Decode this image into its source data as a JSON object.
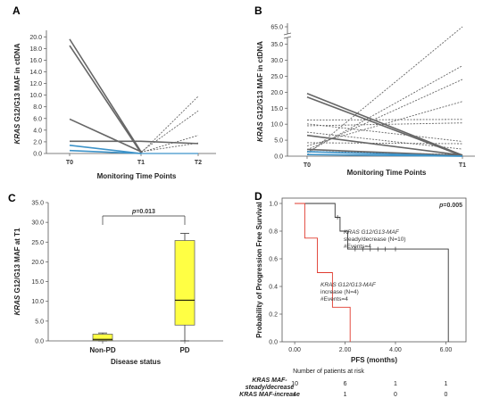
{
  "figure": {
    "panel_A": "A",
    "panel_B": "B",
    "panel_C": "C",
    "panel_D": "D"
  },
  "colors": {
    "gray": "#666666",
    "blue": "#3d93c9",
    "yellow": "#ffff44",
    "red": "#e03a2e",
    "black": "#000000"
  },
  "chart_data": [
    {
      "panel": "A",
      "type": "line",
      "ylabel": "KRAS G12/G13 MAF in ctDNA",
      "ylabel_italic": "KRAS",
      "ylabel_rest": " G12/G13 MAF in ctDNA",
      "xlabel": "Monitoring Time Points",
      "categories": [
        "T0",
        "T1",
        "T2"
      ],
      "yticks": [
        "0.0",
        "2.0",
        "4.0",
        "6.0",
        "8.0",
        "10.0",
        "12.0",
        "14.0",
        "16.0",
        "18.0",
        "20.0"
      ],
      "ylim": [
        0,
        20.5
      ],
      "grid": false,
      "series_solid_gray": [
        {
          "t0": 19.6,
          "t1": 0.3
        },
        {
          "t0": 18.5,
          "t1": 0.1
        },
        {
          "t0": 5.9,
          "t1": 0.3
        },
        {
          "t0": 2.1,
          "t1": 2.1
        }
      ],
      "series_blue": [
        {
          "t0": 1.4,
          "t1": 0.0
        },
        {
          "t0": 0.5,
          "t1": 0.0
        }
      ],
      "series_dotted_t1_t2": [
        {
          "t1": 0.1,
          "t2": 9.8
        },
        {
          "t1": 0.3,
          "t2": 7.3
        },
        {
          "t1": 0.2,
          "t2": 3.1
        },
        {
          "t1": 0.3,
          "t2": 1.8
        }
      ],
      "series_solid_t1_t2": [
        {
          "t1": 2.1,
          "t2": 1.7
        }
      ]
    },
    {
      "panel": "B",
      "type": "line",
      "ylabel": "KRAS G12/G13 MAF in ctDNA",
      "ylabel_italic": "KRAS",
      "ylabel_rest": " G12/G13 MAF in ctDNA",
      "xlabel": "Monitoring Time Points",
      "categories": [
        "T0",
        "T1"
      ],
      "yticks": [
        "0.0",
        "5.0",
        "10.0",
        "15.0",
        "20.0",
        "25.0",
        "30.0",
        "35.0"
      ],
      "ytick_break": "65.0",
      "ylim": [
        0,
        36
      ],
      "grid": false,
      "solid_gray": [
        {
          "t0": 19.6,
          "t1": 0.3
        },
        {
          "t0": 18.5,
          "t1": 0.1
        },
        {
          "t0": 6.5,
          "t1": 0.3
        },
        {
          "t0": 2.1,
          "t1": 0.2
        }
      ],
      "blue": [
        {
          "t0": 1.4,
          "t1": 0.0
        },
        {
          "t0": 0.5,
          "t1": 0.0
        }
      ],
      "dotted": [
        {
          "t0": 0.5,
          "t1": 65.0
        },
        {
          "t0": 1.2,
          "t1": 28.3
        },
        {
          "t0": 2.0,
          "t1": 24.0
        },
        {
          "t0": 3.2,
          "t1": 17.1
        },
        {
          "t0": 11.3,
          "t1": 11.5
        },
        {
          "t0": 9.5,
          "t1": 10.4
        },
        {
          "t0": 10.1,
          "t1": 4.6
        },
        {
          "t0": 4.2,
          "t1": 3.9
        },
        {
          "t0": 7.5,
          "t1": 2.2
        },
        {
          "t0": 1.5,
          "t1": 0.5
        }
      ]
    },
    {
      "panel": "C",
      "type": "box",
      "ylabel": "KRAS G12/G13 MAF at T1",
      "ylabel_italic": "KRAS",
      "ylabel_rest": " G12/G13 MAF at T1",
      "xlabel": "Disease status",
      "categories": [
        "Non-PD",
        "PD"
      ],
      "yticks": [
        "0.0",
        "5.0",
        "10.0",
        "15.0",
        "20.0",
        "25.0",
        "30.0",
        "35.0"
      ],
      "ylim": [
        0,
        35
      ],
      "pvalue_p": "p",
      "pvalue_rest": "=0.013",
      "boxes": [
        {
          "name": "Non-PD",
          "min": 0.0,
          "q1": 0.1,
          "median": 0.4,
          "q3": 1.7,
          "max": 2.0
        },
        {
          "name": "PD",
          "min": 0.0,
          "q1": 4.0,
          "median": 10.3,
          "q3": 25.4,
          "max": 27.2
        }
      ]
    },
    {
      "panel": "D",
      "type": "line",
      "ylabel": "Probability of Progression Free Survival",
      "xlabel": "PFS (months)",
      "xticks": [
        "0.00",
        "2.00",
        "4.00",
        "6.00"
      ],
      "yticks": [
        "0.0",
        "0.2",
        "0.4",
        "0.6",
        "0.8",
        "1.0"
      ],
      "xlim": [
        -0.5,
        6.8
      ],
      "ylim": [
        0,
        1.0
      ],
      "pvalue_p": "p",
      "pvalue_rest": "=0.005",
      "series": [
        {
          "name": "steady/decrease",
          "label_line1_italic": "KRAS G12/G13-MAF",
          "label_line2": "steady/decrease (N=10)",
          "label_line3": "#Events=4",
          "steps": [
            [
              0.0,
              1.0
            ],
            [
              1.6,
              1.0
            ],
            [
              1.6,
              0.9
            ],
            [
              1.8,
              0.9
            ],
            [
              1.8,
              0.8
            ],
            [
              2.1,
              0.8
            ],
            [
              2.1,
              0.67
            ],
            [
              6.1,
              0.67
            ],
            [
              6.1,
              0.0
            ]
          ],
          "censors": [
            [
              1.7,
              0.9
            ],
            [
              2.4,
              0.67
            ],
            [
              2.7,
              0.67
            ],
            [
              3.0,
              0.67
            ],
            [
              3.3,
              0.67
            ],
            [
              3.6,
              0.67
            ],
            [
              4.0,
              0.67
            ]
          ]
        },
        {
          "name": "increase",
          "label_line1_italic": "KRAS G12/G13-MAF",
          "label_line2": "increase (N=4)",
          "label_line3": "#Events=4",
          "steps": [
            [
              0.0,
              1.0
            ],
            [
              0.4,
              1.0
            ],
            [
              0.4,
              0.75
            ],
            [
              0.9,
              0.75
            ],
            [
              0.9,
              0.5
            ],
            [
              1.5,
              0.5
            ],
            [
              1.5,
              0.25
            ],
            [
              2.2,
              0.25
            ],
            [
              2.2,
              0.0
            ]
          ],
          "censors": []
        }
      ],
      "risk_table": {
        "title": "Number of patients at risk",
        "row1_label_line1": "KRAS MAF-",
        "row1_label_line2": "steady/decrease",
        "row1": [
          "10",
          "6",
          "1",
          "1"
        ],
        "row2_label": "KRAS MAF-increase",
        "row2": [
          "4",
          "1",
          "0",
          "0"
        ]
      }
    }
  ]
}
